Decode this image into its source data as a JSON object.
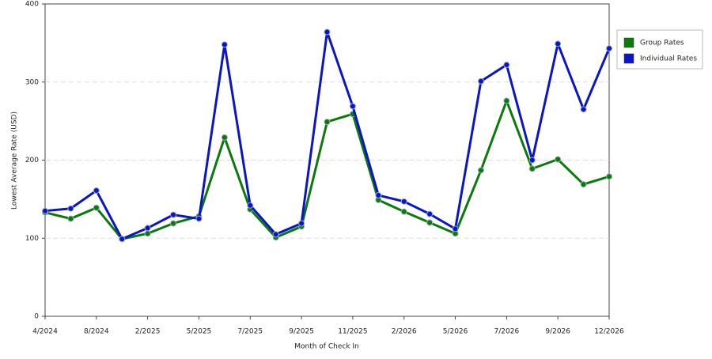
{
  "chart_data": {
    "type": "line",
    "x_label": "Month of Check In",
    "y_label": "Lowest Average Rate (USD)",
    "categories": [
      "4/2024",
      null,
      "8/2024",
      null,
      "2/2025",
      null,
      "5/2025",
      null,
      "7/2025",
      null,
      "9/2025",
      null,
      "11/2025",
      null,
      "2/2026",
      null,
      "5/2026",
      null,
      "7/2026",
      null,
      "9/2026",
      null,
      "12/2026"
    ],
    "series": [
      {
        "name": "Group Rates",
        "color": "#0a7a0a",
        "values": [
          133,
          125,
          139,
          99,
          106,
          119,
          128,
          229,
          137,
          101,
          115,
          249,
          259,
          149,
          134,
          120,
          106,
          187,
          276,
          189,
          201,
          169,
          179
        ]
      },
      {
        "name": "Individual Rates",
        "color": "#0a14c8",
        "values": [
          135,
          138,
          161,
          99,
          113,
          130,
          125,
          348,
          142,
          105,
          119,
          364,
          269,
          155,
          147,
          131,
          112,
          301,
          322,
          200,
          349,
          265,
          343
        ]
      }
    ],
    "ylim": [
      0,
      400
    ],
    "yticks": [
      0,
      100,
      200,
      300,
      400
    ],
    "grid": true,
    "legend": "right"
  }
}
